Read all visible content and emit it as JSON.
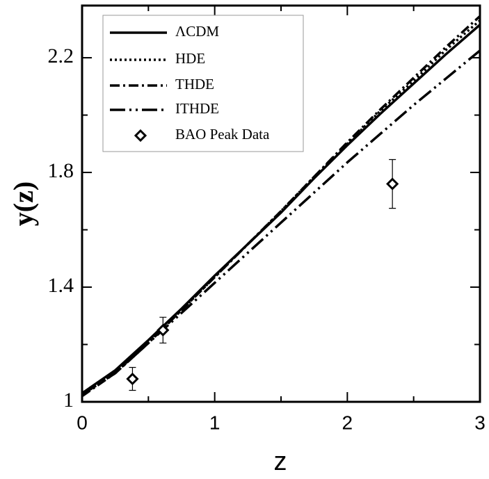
{
  "chart_data": {
    "type": "line",
    "x_label": "z",
    "y_label": "y(z)",
    "xlim": [
      0,
      3
    ],
    "ylim": [
      1,
      2.382
    ],
    "xticks": [
      0,
      1,
      2,
      3
    ],
    "yticks": [
      1,
      1.4,
      1.8,
      2.2
    ],
    "x_minor_ticks": [
      0.5,
      1.5,
      2.5
    ],
    "y_minor_ticks": [
      1.2,
      1.6,
      2.0
    ],
    "x": [
      0,
      0.25,
      0.5,
      0.75,
      1,
      1.25,
      1.5,
      1.75,
      2,
      2.25,
      2.5,
      2.75,
      3
    ],
    "series": [
      {
        "name": "ΛCDM",
        "color": "#000000",
        "dash": "none",
        "values": [
          1.03,
          1.11,
          1.215,
          1.325,
          1.44,
          1.55,
          1.66,
          1.78,
          1.895,
          2.005,
          2.11,
          2.215,
          2.315
        ]
      },
      {
        "name": "HDE",
        "color": "#000000",
        "dash": "3 4",
        "values": [
          1.025,
          1.1,
          1.21,
          1.32,
          1.435,
          1.55,
          1.665,
          1.785,
          1.9,
          2.015,
          2.12,
          2.23,
          2.33
        ]
      },
      {
        "name": "THDE",
        "color": "#000000",
        "dash": "14 5 3 5",
        "values": [
          1.02,
          1.1,
          1.205,
          1.32,
          1.435,
          1.55,
          1.665,
          1.785,
          1.905,
          2.02,
          2.13,
          2.24,
          2.345
        ]
      },
      {
        "name": "ITHDE",
        "color": "#000000",
        "dash": "22 6 3 6 3 6",
        "values": [
          1.025,
          1.1,
          1.205,
          1.31,
          1.415,
          1.52,
          1.625,
          1.73,
          1.835,
          1.935,
          2.035,
          2.13,
          2.225
        ]
      }
    ],
    "points": {
      "name": "BAO Peak Data",
      "type": "scatter",
      "color": "#000000",
      "x": [
        0.38,
        0.61,
        2.34
      ],
      "values": [
        1.08,
        1.25,
        1.76
      ],
      "errors": [
        0.04,
        0.045,
        0.085
      ]
    },
    "legend": "top-left"
  }
}
